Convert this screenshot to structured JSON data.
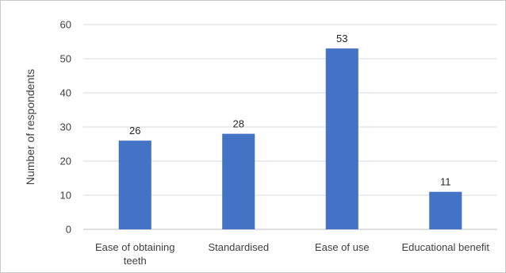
{
  "chart_data": {
    "type": "bar",
    "title": "",
    "xlabel": "",
    "ylabel": "Number of respondents",
    "categories": [
      [
        "Ease of obtaining",
        "teeth"
      ],
      [
        "Standardised"
      ],
      [
        "Ease of use"
      ],
      [
        "Educational benefit"
      ]
    ],
    "values": [
      26,
      28,
      53,
      11
    ],
    "data_labels": [
      "26",
      "28",
      "53",
      "11"
    ],
    "ylim": [
      0,
      60
    ],
    "yticks": [
      0,
      10,
      20,
      30,
      40,
      50,
      60
    ],
    "grid": true,
    "legend": "none",
    "colors": {
      "bar": "#4472c4",
      "grid": "#d9d9d9",
      "axis": "#bfbfbf"
    }
  }
}
